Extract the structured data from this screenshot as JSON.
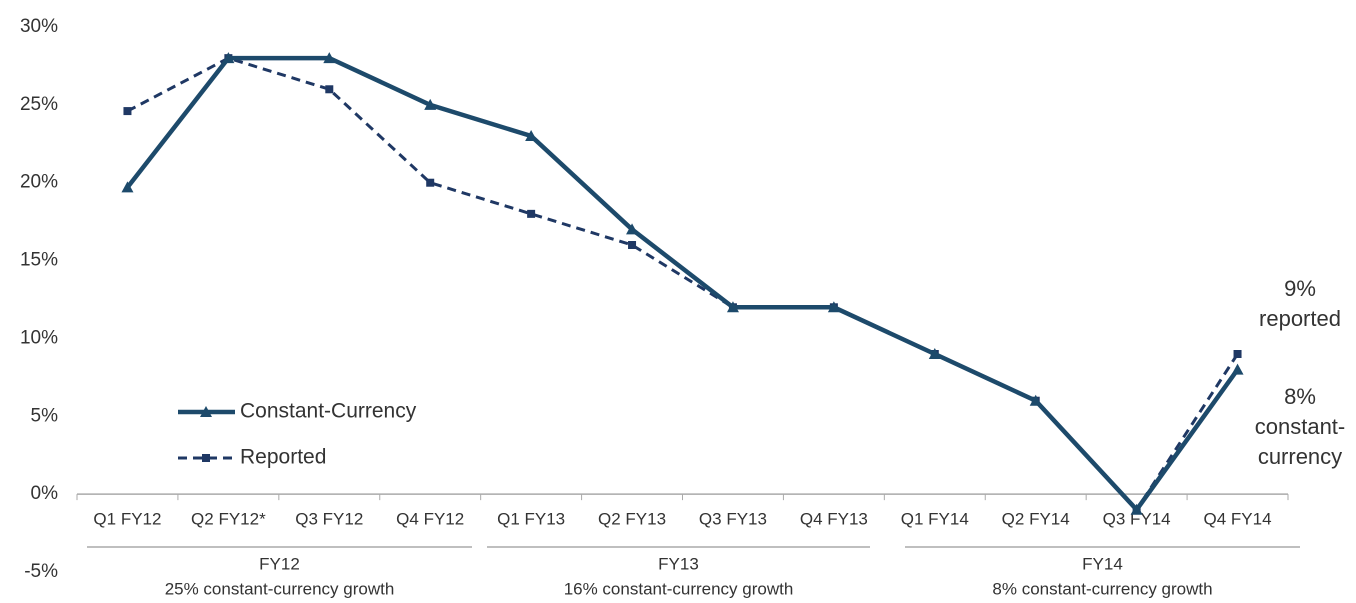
{
  "chart_data": {
    "type": "line",
    "categories": [
      "Q1 FY12",
      "Q2 FY12*",
      "Q3 FY12",
      "Q4 FY12",
      "Q1 FY13",
      "Q2 FY13",
      "Q3 FY13",
      "Q4 FY13",
      "Q1 FY14",
      "Q2 FY14",
      "Q3 FY14",
      "Q4 FY14"
    ],
    "series": [
      {
        "name": "Constant-Currency",
        "color": "#1d4a6b",
        "values": [
          19.7,
          28,
          28,
          25,
          23,
          17,
          12,
          12,
          9,
          6,
          -1,
          8
        ]
      },
      {
        "name": "Reported",
        "color": "#1f3864",
        "values": [
          24.6,
          28,
          26,
          20,
          18,
          16,
          12,
          12,
          9,
          6,
          -1,
          9
        ]
      }
    ],
    "ylim": [
      -5,
      30
    ],
    "yticks": [
      {
        "value": -5,
        "label": "-5%"
      },
      {
        "value": 0,
        "label": "0%"
      },
      {
        "value": 5,
        "label": "5%"
      },
      {
        "value": 10,
        "label": "10%"
      },
      {
        "value": 15,
        "label": "15%"
      },
      {
        "value": 20,
        "label": "20%"
      },
      {
        "value": 25,
        "label": "25%"
      },
      {
        "value": 30,
        "label": "30%"
      }
    ],
    "groups": [
      {
        "name": "FY12",
        "note": "25% constant-currency growth"
      },
      {
        "name": "FY13",
        "note": "16% constant-currency growth"
      },
      {
        "name": "FY14",
        "note": "8% constant-currency growth"
      }
    ],
    "annotations": [
      [
        "9%",
        "reported"
      ],
      [
        "8%",
        "constant-",
        "currency"
      ]
    ],
    "legend": "lower-left"
  }
}
